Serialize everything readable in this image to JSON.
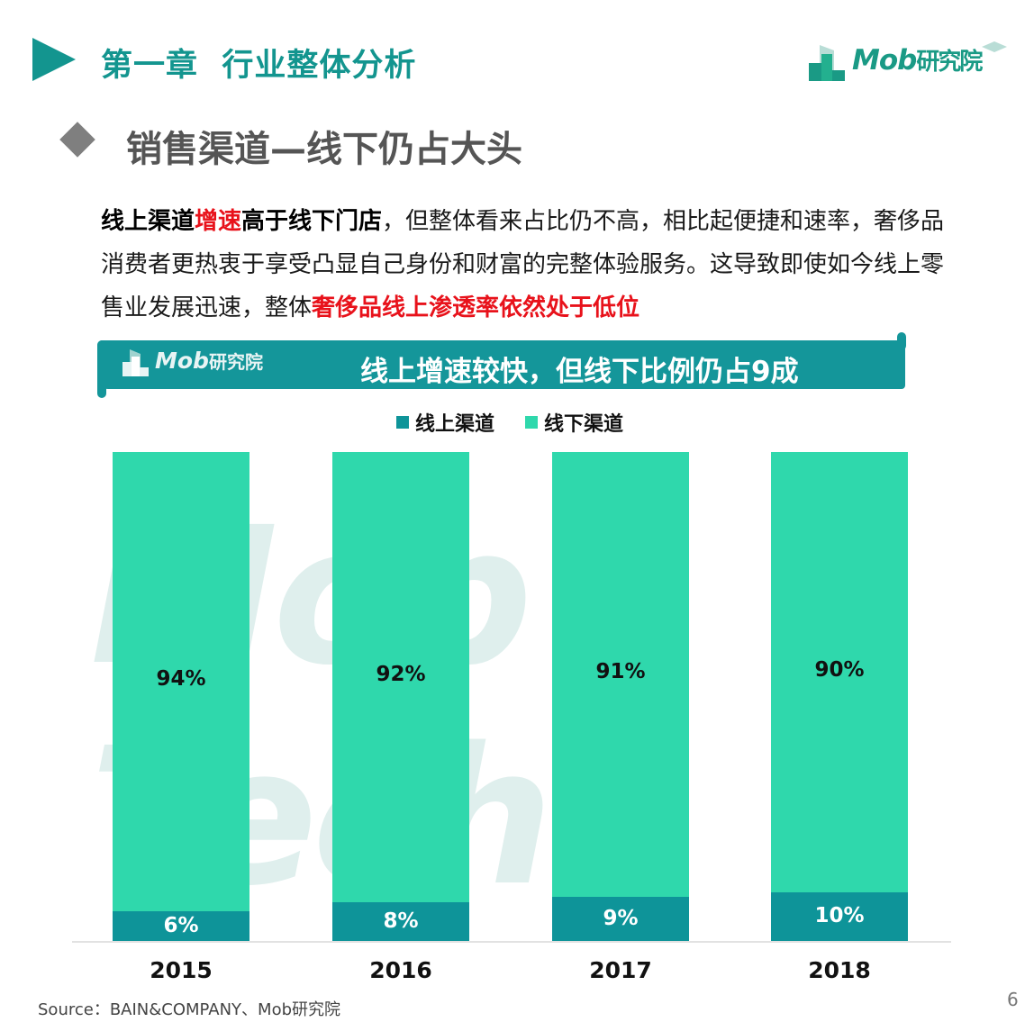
{
  "header": {
    "chapter_title": "第一章  行业整体分析",
    "brand_logo": {
      "latin": "Mob",
      "cn": "研究院"
    }
  },
  "section": {
    "title": "销售渠道—线下仍占大头"
  },
  "paragraph": {
    "segments": [
      {
        "text": "线上渠道",
        "style": "bold"
      },
      {
        "text": "增速",
        "style": "red"
      },
      {
        "text": "高于线下门店",
        "style": "bold"
      },
      {
        "text": "，但整体看来占比仍不高，相比起便捷和速率，奢侈品消费者更热衷于享受凸显自己身份和财富的完整体验服务。这导致即使如今线上零售业发展迅速，整体",
        "style": "normal"
      },
      {
        "text": "奢侈品线上渗透率依然处于低位",
        "style": "red"
      }
    ]
  },
  "banner": {
    "logo": {
      "latin": "Mob",
      "cn": "研究院"
    },
    "title": "线上增速较快，但线下比例仍占9成"
  },
  "watermark": "Mob Tech",
  "colors": {
    "accent_teal": "#13958f",
    "online": "#0e9499",
    "offline": "#2fd8ac",
    "highlight_red": "#e8121b"
  },
  "chart_data": {
    "type": "bar",
    "stacked": true,
    "normalized_percent": true,
    "title": "线上增速较快，但线下比例仍占9成",
    "categories": [
      "2015",
      "2016",
      "2017",
      "2018"
    ],
    "series": [
      {
        "name": "线上渠道",
        "color": "#0e9499",
        "values": [
          6,
          8,
          9,
          10
        ],
        "labels": [
          "6%",
          "8%",
          "9%",
          "10%"
        ]
      },
      {
        "name": "线下渠道",
        "color": "#2fd8ac",
        "values": [
          94,
          92,
          91,
          90
        ],
        "labels": [
          "94%",
          "92%",
          "91%",
          "90%"
        ]
      }
    ],
    "xlabel": "",
    "ylabel": "",
    "ylim": [
      0,
      100
    ],
    "grid": false,
    "legend_position": "top"
  },
  "footer": {
    "source": "Source：BAIN&COMPANY、Mob研究院",
    "page_number": "6"
  }
}
